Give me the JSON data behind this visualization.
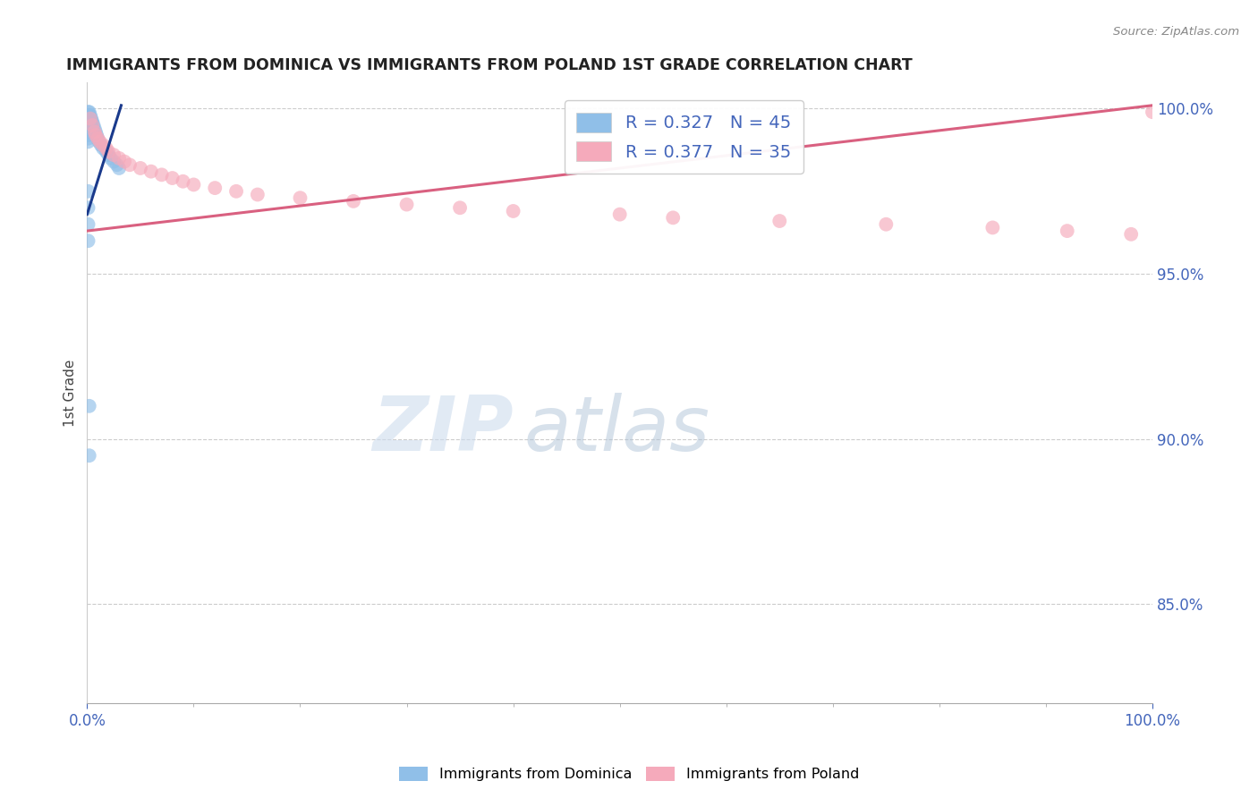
{
  "title": "IMMIGRANTS FROM DOMINICA VS IMMIGRANTS FROM POLAND 1ST GRADE CORRELATION CHART",
  "source": "Source: ZipAtlas.com",
  "ylabel": "1st Grade",
  "y_ticks": [
    0.85,
    0.9,
    0.95,
    1.0
  ],
  "x_lim": [
    0.0,
    1.0
  ],
  "y_lim": [
    0.82,
    1.008
  ],
  "blue_color": "#90bfe8",
  "pink_color": "#f5aabb",
  "blue_line_color": "#1a3a8c",
  "pink_line_color": "#d96080",
  "axis_tick_color": "#4466bb",
  "legend_entries": [
    "R = 0.327   N = 45",
    "R = 0.377   N = 35"
  ],
  "legend_labels_bottom": [
    "Immigrants from Dominica",
    "Immigrants from Poland"
  ],
  "blue_line_x0": 0.0,
  "blue_line_y0": 0.968,
  "blue_line_x1": 0.032,
  "blue_line_y1": 1.001,
  "pink_line_x0": 0.0,
  "pink_line_y0": 0.963,
  "pink_line_x1": 1.0,
  "pink_line_y1": 1.001,
  "blue_x": [
    0.001,
    0.001,
    0.001,
    0.001,
    0.001,
    0.001,
    0.001,
    0.001,
    0.001,
    0.001,
    0.002,
    0.002,
    0.002,
    0.002,
    0.002,
    0.003,
    0.003,
    0.003,
    0.003,
    0.004,
    0.004,
    0.004,
    0.005,
    0.005,
    0.006,
    0.006,
    0.007,
    0.008,
    0.009,
    0.01,
    0.011,
    0.013,
    0.015,
    0.018,
    0.02,
    0.022,
    0.025,
    0.028,
    0.03,
    0.001,
    0.001,
    0.001,
    0.001,
    0.002,
    0.002
  ],
  "blue_y": [
    0.999,
    0.998,
    0.997,
    0.996,
    0.995,
    0.994,
    0.993,
    0.992,
    0.991,
    0.99,
    0.999,
    0.998,
    0.997,
    0.996,
    0.995,
    0.998,
    0.997,
    0.996,
    0.995,
    0.997,
    0.996,
    0.994,
    0.996,
    0.994,
    0.995,
    0.993,
    0.994,
    0.993,
    0.992,
    0.991,
    0.99,
    0.989,
    0.988,
    0.987,
    0.986,
    0.985,
    0.984,
    0.983,
    0.982,
    0.975,
    0.97,
    0.965,
    0.96,
    0.91,
    0.895
  ],
  "pink_x": [
    0.003,
    0.005,
    0.007,
    0.008,
    0.01,
    0.012,
    0.015,
    0.018,
    0.02,
    0.025,
    0.03,
    0.035,
    0.04,
    0.05,
    0.06,
    0.07,
    0.08,
    0.09,
    0.1,
    0.12,
    0.14,
    0.16,
    0.2,
    0.25,
    0.3,
    0.35,
    0.4,
    0.5,
    0.55,
    0.65,
    0.75,
    0.85,
    0.92,
    0.98,
    1.0
  ],
  "pink_y": [
    0.997,
    0.995,
    0.993,
    0.992,
    0.991,
    0.99,
    0.989,
    0.988,
    0.987,
    0.986,
    0.985,
    0.984,
    0.983,
    0.982,
    0.981,
    0.98,
    0.979,
    0.978,
    0.977,
    0.976,
    0.975,
    0.974,
    0.973,
    0.972,
    0.971,
    0.97,
    0.969,
    0.968,
    0.967,
    0.966,
    0.965,
    0.964,
    0.963,
    0.962,
    0.999
  ]
}
